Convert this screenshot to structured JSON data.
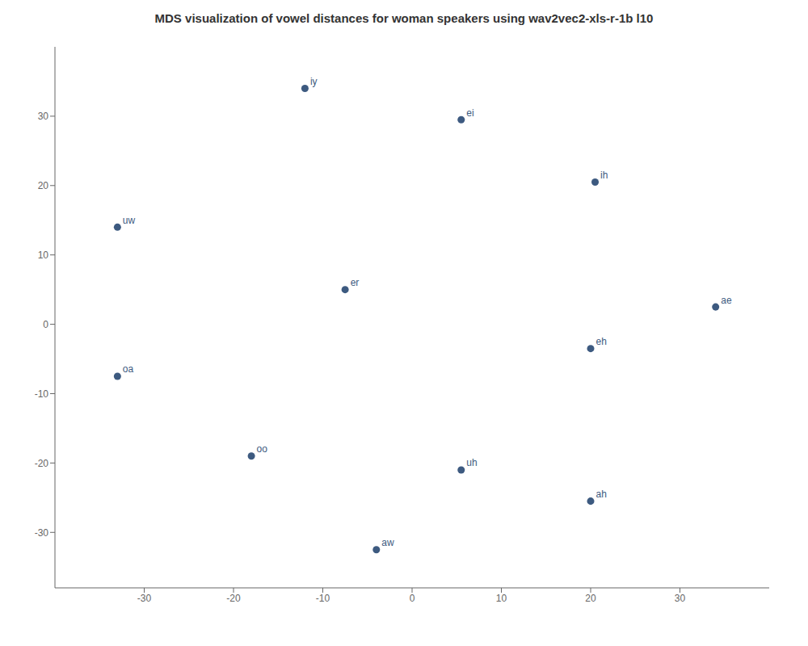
{
  "chart_data": {
    "type": "scatter",
    "title": "MDS visualization of vowel distances for woman speakers using wav2vec2-xls-r-1b l10",
    "x": [
      -12.0,
      5.5,
      20.5,
      -33.0,
      -7.5,
      34.0,
      20.0,
      -33.0,
      -18.0,
      5.5,
      20.0,
      -4.0
    ],
    "values": [
      34.0,
      29.5,
      20.5,
      14.0,
      5.0,
      2.5,
      -3.5,
      -7.5,
      -19.0,
      -21.0,
      -25.5,
      -32.5
    ],
    "labels": [
      "iy",
      "ei",
      "ih",
      "uw",
      "er",
      "ae",
      "eh",
      "oa",
      "oo",
      "uh",
      "ah",
      "aw"
    ],
    "color": "#3d5a80",
    "xlim": [
      -40,
      40
    ],
    "ylim": [
      -38,
      40
    ],
    "xticks": [
      -30,
      -20,
      -10,
      0,
      10,
      20,
      30
    ],
    "yticks": [
      -30,
      -20,
      -10,
      0,
      10,
      20,
      30
    ],
    "grid": false
  }
}
